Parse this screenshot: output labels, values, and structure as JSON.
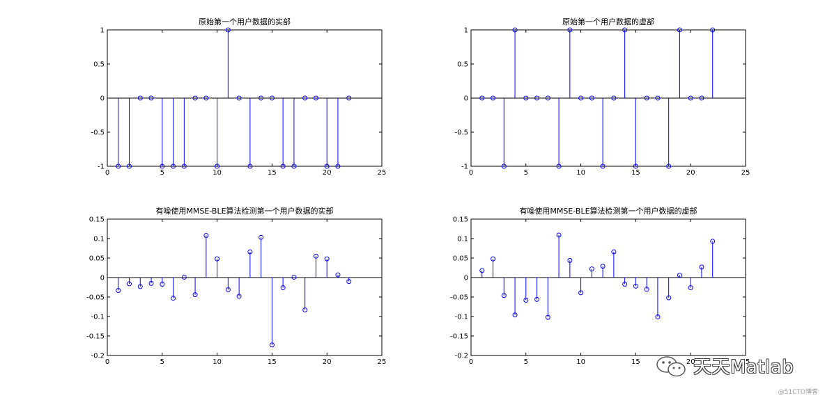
{
  "chart_data": [
    {
      "type": "stem",
      "title": "原始第一个用户数据的实部",
      "x": [
        1,
        2,
        3,
        4,
        5,
        6,
        7,
        8,
        9,
        10,
        11,
        12,
        13,
        14,
        15,
        16,
        17,
        18,
        19,
        20,
        21,
        22
      ],
      "values": [
        -1,
        -1,
        0,
        0,
        -1,
        -1,
        -1,
        0,
        0,
        -1,
        1,
        0,
        -1,
        0,
        0,
        -1,
        -1,
        0,
        0,
        -1,
        -1,
        0
      ],
      "xlim": [
        0,
        25
      ],
      "ylim": [
        -1,
        1
      ],
      "xticks": [
        0,
        5,
        10,
        15,
        20,
        25
      ],
      "yticks": [
        -1,
        -0.5,
        0,
        0.5,
        1
      ],
      "xtick_labels": [
        "0",
        "5",
        "10",
        "15",
        "20",
        "25"
      ],
      "ytick_labels": [
        "-1",
        "-0.5",
        "0",
        "0.5",
        "1"
      ]
    },
    {
      "type": "stem",
      "title": "原始第一个用户数据的虚部",
      "x": [
        1,
        2,
        3,
        4,
        5,
        6,
        7,
        8,
        9,
        10,
        11,
        12,
        13,
        14,
        15,
        16,
        17,
        18,
        19,
        20,
        21,
        22
      ],
      "values": [
        0,
        0,
        -1,
        1,
        0,
        0,
        0,
        -1,
        1,
        0,
        0,
        -1,
        0,
        1,
        -1,
        0,
        0,
        -1,
        1,
        0,
        0,
        1
      ],
      "xlim": [
        0,
        25
      ],
      "ylim": [
        -1,
        1
      ],
      "xticks": [
        0,
        5,
        10,
        15,
        20,
        25
      ],
      "yticks": [
        -1,
        -0.5,
        0,
        0.5,
        1
      ],
      "xtick_labels": [
        "0",
        "5",
        "10",
        "15",
        "20",
        "25"
      ],
      "ytick_labels": [
        "-1",
        "-0.5",
        "0",
        "0.5",
        "1"
      ]
    },
    {
      "type": "stem",
      "title": "有噪使用MMSE-BLE算法检测第一个用户数据的实部",
      "x": [
        1,
        2,
        3,
        4,
        5,
        6,
        7,
        8,
        9,
        10,
        11,
        12,
        13,
        14,
        15,
        16,
        17,
        18,
        19,
        20,
        21,
        22
      ],
      "values": [
        -0.033,
        -0.016,
        -0.023,
        -0.015,
        -0.017,
        -0.053,
        0.001,
        -0.044,
        0.108,
        0.048,
        -0.031,
        -0.048,
        0.066,
        0.103,
        -0.173,
        -0.026,
        0.001,
        -0.083,
        0.055,
        0.048,
        0.007,
        -0.01
      ],
      "xlim": [
        0,
        25
      ],
      "ylim": [
        -0.2,
        0.15
      ],
      "xticks": [
        0,
        5,
        10,
        15,
        20,
        25
      ],
      "yticks": [
        -0.2,
        -0.15,
        -0.1,
        -0.05,
        0,
        0.05,
        0.1,
        0.15
      ],
      "xtick_labels": [
        "0",
        "5",
        "10",
        "15",
        "20",
        "25"
      ],
      "ytick_labels": [
        "-0.2",
        "-0.15",
        "-0.1",
        "-0.05",
        "0",
        "0.05",
        "0.1",
        "0.15"
      ]
    },
    {
      "type": "stem",
      "title": "有噪使用MMSE-BLE算法检测第一个用户数据的虚部",
      "x": [
        1,
        2,
        3,
        4,
        5,
        6,
        7,
        8,
        9,
        10,
        11,
        12,
        13,
        14,
        15,
        16,
        17,
        18,
        19,
        20,
        21,
        22
      ],
      "values": [
        0.018,
        0.048,
        -0.046,
        -0.096,
        -0.058,
        -0.056,
        -0.102,
        0.109,
        0.044,
        -0.039,
        0.022,
        0.029,
        0.066,
        -0.017,
        -0.022,
        -0.03,
        -0.101,
        -0.052,
        0.006,
        -0.026,
        0.027,
        0.093
      ],
      "xlim": [
        0,
        25
      ],
      "ylim": [
        -0.2,
        0.15
      ],
      "xticks": [
        0,
        5,
        10,
        15,
        20,
        25
      ],
      "yticks": [
        -0.2,
        -0.15,
        -0.1,
        -0.05,
        0,
        0.05,
        0.1,
        0.15
      ],
      "xtick_labels": [
        "0",
        "5",
        "10",
        "15",
        "20",
        "25"
      ],
      "ytick_labels": [
        "-0.2",
        "-0.15",
        "-0.1",
        "-0.05",
        "0",
        "0.05",
        "0.1",
        "0.15"
      ]
    }
  ],
  "colors": {
    "stem": "#0000ff",
    "axis": "#000000",
    "baseline": "#000000"
  },
  "watermark": {
    "text": "天天Matlab",
    "icon": "wechat-icon"
  },
  "credit": "@51CTO博客"
}
